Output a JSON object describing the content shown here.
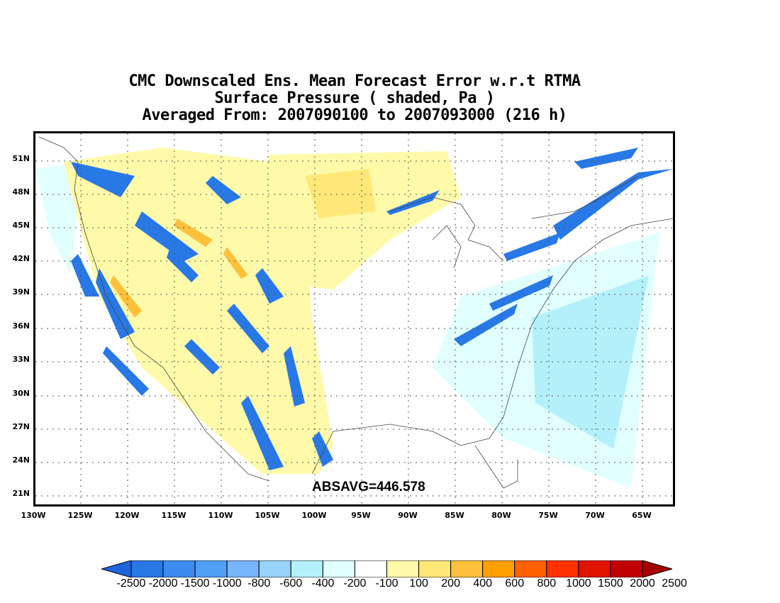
{
  "title": {
    "line1": "CMC Downscaled Ens. Mean Forecast Error w.r.t RTMA",
    "line2": "Surface Pressure ( shaded, Pa )",
    "line3": "Averaged From: 2007090100 to 2007093000 (216 h)"
  },
  "map": {
    "lat_labels": [
      "51N",
      "48N",
      "45N",
      "42N",
      "39N",
      "36N",
      "33N",
      "30N",
      "27N",
      "24N",
      "21N"
    ],
    "lon_labels": [
      "130W",
      "125W",
      "120W",
      "115W",
      "110W",
      "105W",
      "100W",
      "95W",
      "90W",
      "85W",
      "80W",
      "75W",
      "70W",
      "65W"
    ],
    "absavg": "ABSAVG=446.578"
  },
  "colorbar": {
    "labels": [
      "-2500",
      "-2000",
      "-1500",
      "-1000",
      "-800",
      "-600",
      "-400",
      "-200",
      "-100",
      "100",
      "200",
      "400",
      "600",
      "800",
      "1000",
      "1500",
      "2000",
      "2500"
    ],
    "colors": [
      "#1e64dc",
      "#2878e6",
      "#3c8cf0",
      "#509ff5",
      "#78b4fa",
      "#96d2fa",
      "#b4f0fa",
      "#e1ffff",
      "#ffffff",
      "#fffaaa",
      "#ffe878",
      "#ffc03c",
      "#ffa000",
      "#ff6000",
      "#ff3200",
      "#e11400",
      "#c00000",
      "#a50000"
    ]
  }
}
